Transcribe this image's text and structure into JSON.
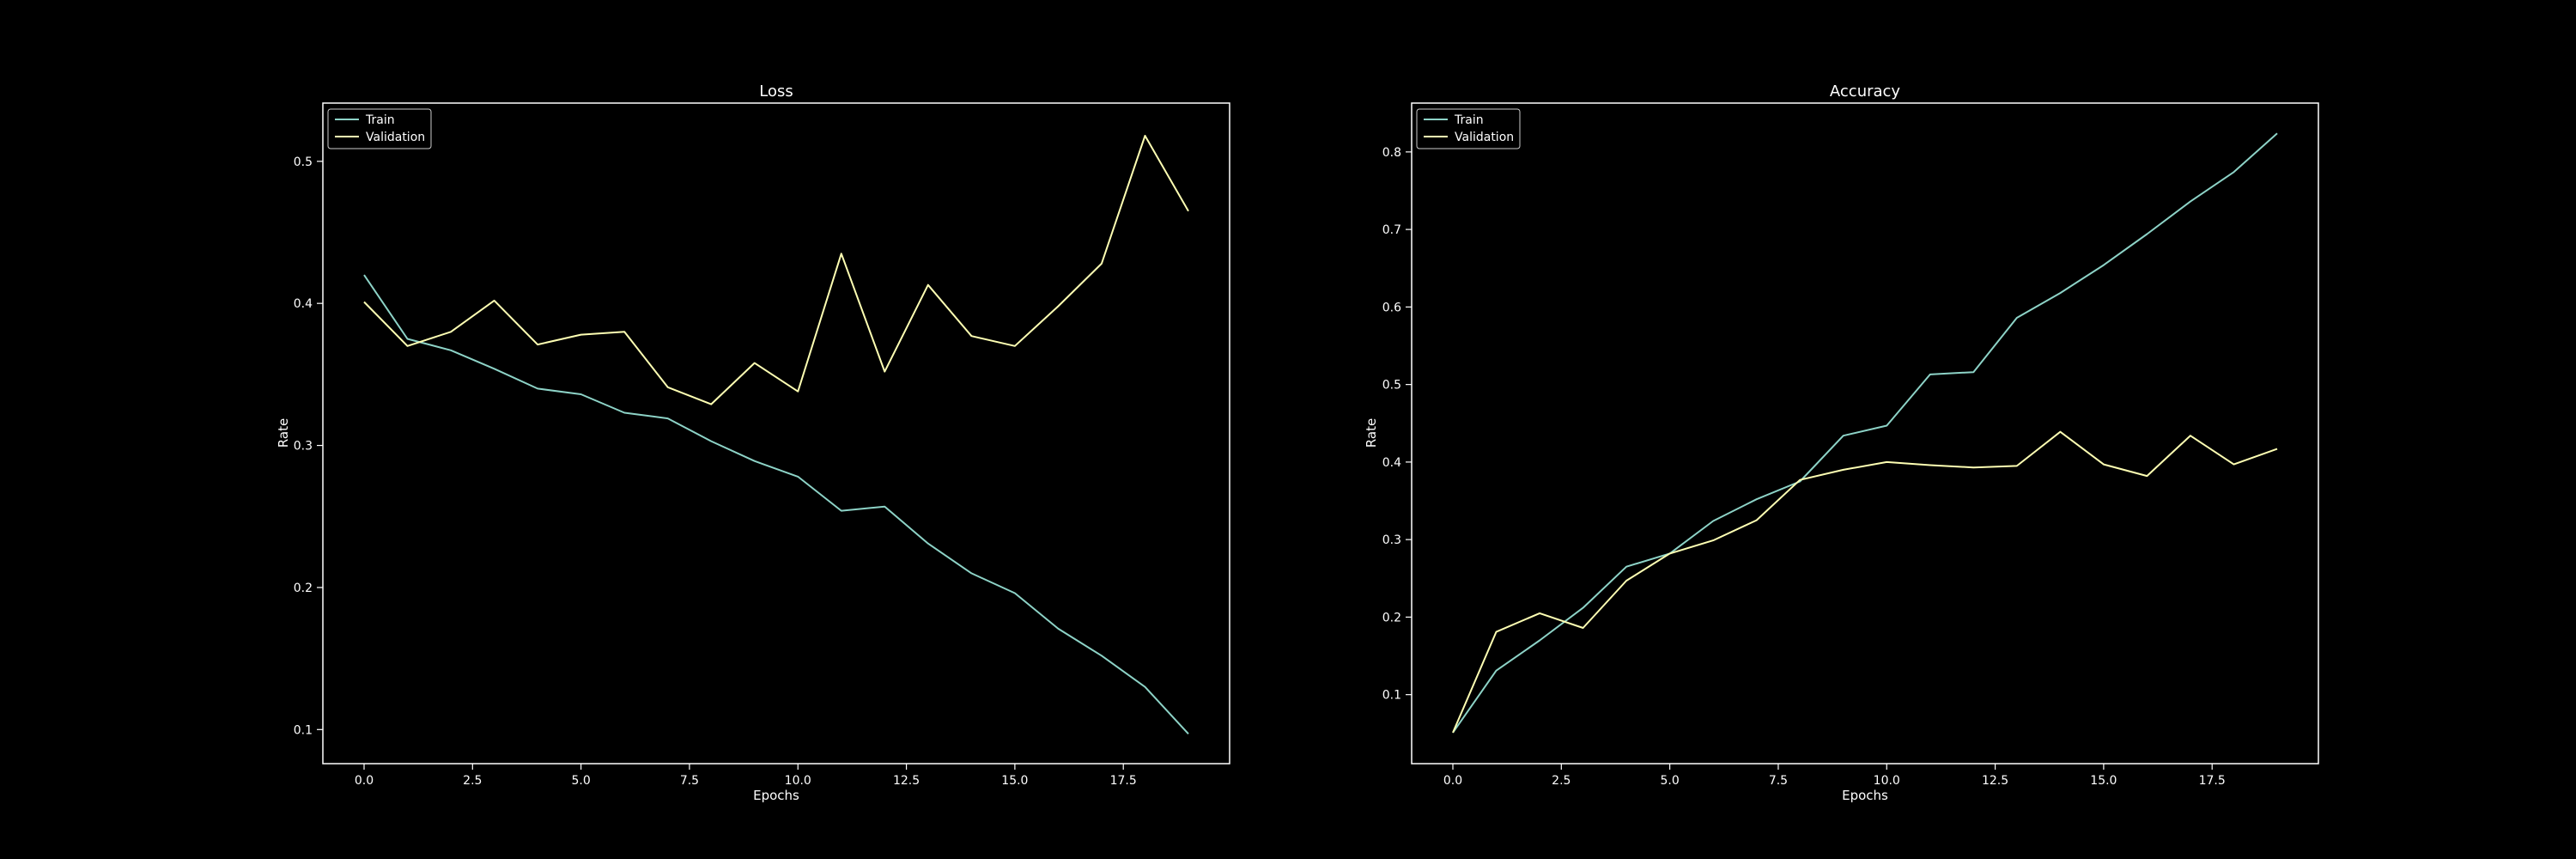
{
  "colors": {
    "background": "#000000",
    "axes": "#ffffff",
    "train": "#8dd3c7",
    "validation": "#feffb3"
  },
  "chart_data": [
    {
      "type": "line",
      "title": "Loss",
      "xlabel": "Epochs",
      "ylabel": "Rate",
      "xlim": [
        -0.95,
        19.95
      ],
      "ylim": [
        0.076,
        0.541
      ],
      "xticks": [
        0.0,
        2.5,
        5.0,
        7.5,
        10.0,
        12.5,
        15.0,
        17.5
      ],
      "xtick_labels": [
        "0.0",
        "2.5",
        "5.0",
        "7.5",
        "10.0",
        "12.5",
        "15.0",
        "17.5"
      ],
      "yticks": [
        0.1,
        0.2,
        0.3,
        0.4,
        0.5
      ],
      "ytick_labels": [
        "0.1",
        "0.2",
        "0.3",
        "0.4",
        "0.5"
      ],
      "legend_position": "top-left",
      "x": [
        0,
        1,
        2,
        3,
        4,
        5,
        6,
        7,
        8,
        9,
        10,
        11,
        12,
        13,
        14,
        15,
        16,
        17,
        18,
        19
      ],
      "series": [
        {
          "name": "Train",
          "color": "#8dd3c7",
          "values": [
            0.42,
            0.375,
            0.367,
            0.354,
            0.34,
            0.336,
            0.323,
            0.319,
            0.303,
            0.289,
            0.278,
            0.254,
            0.257,
            0.231,
            0.21,
            0.196,
            0.171,
            0.152,
            0.13,
            0.097
          ]
        },
        {
          "name": "Validation",
          "color": "#feffb3",
          "values": [
            0.401,
            0.37,
            0.38,
            0.402,
            0.371,
            0.378,
            0.38,
            0.341,
            0.329,
            0.358,
            0.338,
            0.435,
            0.352,
            0.413,
            0.377,
            0.37,
            0.398,
            0.428,
            0.518,
            0.465
          ]
        }
      ]
    },
    {
      "type": "line",
      "title": "Accuracy",
      "xlabel": "Epochs",
      "ylabel": "Rate",
      "xlim": [
        -0.95,
        19.95
      ],
      "ylim": [
        0.011,
        0.863
      ],
      "xticks": [
        0.0,
        2.5,
        5.0,
        7.5,
        10.0,
        12.5,
        15.0,
        17.5
      ],
      "xtick_labels": [
        "0.0",
        "2.5",
        "5.0",
        "7.5",
        "10.0",
        "12.5",
        "15.0",
        "17.5"
      ],
      "yticks": [
        0.1,
        0.2,
        0.3,
        0.4,
        0.5,
        0.6,
        0.7,
        0.8
      ],
      "ytick_labels": [
        "0.1",
        "0.2",
        "0.3",
        "0.4",
        "0.5",
        "0.6",
        "0.7",
        "0.8"
      ],
      "legend_position": "top-left",
      "x": [
        0,
        1,
        2,
        3,
        4,
        5,
        6,
        7,
        8,
        9,
        10,
        11,
        12,
        13,
        14,
        15,
        16,
        17,
        18,
        19
      ],
      "series": [
        {
          "name": "Train",
          "color": "#8dd3c7",
          "values": [
            0.051,
            0.131,
            0.17,
            0.212,
            0.265,
            0.282,
            0.324,
            0.352,
            0.375,
            0.434,
            0.447,
            0.513,
            0.516,
            0.586,
            0.618,
            0.654,
            0.694,
            0.736,
            0.774,
            0.824
          ]
        },
        {
          "name": "Validation",
          "color": "#feffb3",
          "values": [
            0.051,
            0.181,
            0.205,
            0.186,
            0.247,
            0.282,
            0.299,
            0.325,
            0.377,
            0.39,
            0.4,
            0.396,
            0.393,
            0.395,
            0.439,
            0.397,
            0.382,
            0.434,
            0.397,
            0.417
          ]
        }
      ]
    }
  ]
}
